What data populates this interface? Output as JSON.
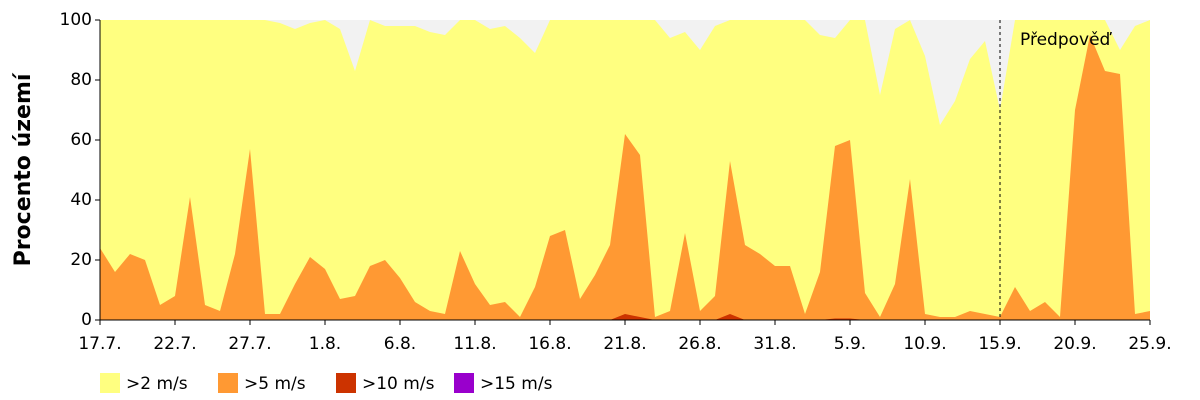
{
  "chart_data": {
    "type": "area",
    "ylabel": "Procento území",
    "categories": [
      "17.7.",
      null,
      null,
      null,
      null,
      "22.7.",
      null,
      null,
      null,
      null,
      "27.7.",
      null,
      null,
      null,
      null,
      "1.8.",
      null,
      null,
      null,
      null,
      "6.8.",
      null,
      null,
      null,
      null,
      "11.8.",
      null,
      null,
      null,
      null,
      "16.8.",
      null,
      null,
      null,
      null,
      "21.8.",
      null,
      null,
      null,
      null,
      "26.8.",
      null,
      null,
      null,
      null,
      "31.8.",
      null,
      null,
      null,
      null,
      "5.9.",
      null,
      null,
      null,
      null,
      "10.9.",
      null,
      null,
      null,
      null,
      "15.9.",
      null,
      null,
      null,
      null,
      "20.9.",
      null,
      null,
      null,
      null,
      "25.9."
    ],
    "series": [
      {
        "name": ">2 m/s",
        "color": "#ffff80",
        "values": [
          100,
          100,
          100,
          100,
          100,
          100,
          100,
          100,
          100,
          100,
          100,
          100,
          99,
          97,
          99,
          100,
          97,
          83,
          100,
          98,
          98,
          98,
          96,
          95,
          100,
          100,
          97,
          98,
          94,
          89,
          100,
          100,
          100,
          100,
          100,
          100,
          100,
          100,
          94,
          96,
          90,
          98,
          100,
          100,
          100,
          100,
          100,
          100,
          95,
          94,
          100,
          100,
          75,
          97,
          100,
          88,
          65,
          73,
          87,
          93,
          70,
          100,
          100,
          100,
          100,
          100,
          100,
          100,
          90,
          98,
          100
        ]
      },
      {
        "name": ">5 m/s",
        "color": "#ff9933",
        "values": [
          24,
          16,
          22,
          20,
          5,
          8,
          41,
          5,
          3,
          22,
          57,
          2,
          2,
          12,
          21,
          17,
          7,
          8,
          18,
          20,
          14,
          6,
          3,
          2,
          23,
          12,
          5,
          6,
          1,
          11,
          28,
          30,
          7,
          15,
          25,
          62,
          55,
          1,
          3,
          29,
          3,
          8,
          53,
          25,
          22,
          18,
          18,
          2,
          16,
          58,
          60,
          9,
          1,
          12,
          47,
          2,
          1,
          1,
          3,
          2,
          1,
          11,
          3,
          6,
          1,
          70,
          95,
          83,
          82,
          2,
          3
        ]
      },
      {
        "name": ">10 m/s",
        "color": "#cc3300",
        "values": [
          0,
          0,
          0,
          0,
          0,
          0,
          0,
          0,
          0,
          0,
          0,
          0,
          0,
          0,
          0,
          0,
          0,
          0,
          0,
          0,
          0,
          0,
          0,
          0,
          0,
          0,
          0,
          0,
          0,
          0,
          0,
          0,
          0,
          0,
          0,
          2,
          1,
          0,
          0,
          0,
          0,
          0,
          2,
          0,
          0,
          0,
          0,
          0,
          0,
          0.5,
          0.5,
          0,
          0,
          0,
          0,
          0,
          0,
          0,
          0,
          0,
          0,
          0,
          0,
          0,
          0,
          0,
          0,
          0,
          0,
          0,
          0
        ]
      },
      {
        "name": ">15 m/s",
        "color": "#9900cc",
        "values": [
          0,
          0,
          0,
          0,
          0,
          0,
          0,
          0,
          0,
          0,
          0,
          0,
          0,
          0,
          0,
          0,
          0,
          0,
          0,
          0,
          0,
          0,
          0,
          0,
          0,
          0,
          0,
          0,
          0,
          0,
          0,
          0,
          0,
          0,
          0,
          0,
          0,
          0,
          0,
          0,
          0,
          0,
          0,
          0,
          0,
          0,
          0,
          0,
          0,
          0,
          0,
          0,
          0,
          0,
          0,
          0,
          0,
          0,
          0,
          0,
          0,
          0,
          0,
          0,
          0,
          0,
          0,
          0,
          0,
          0,
          0
        ]
      }
    ],
    "ylim": [
      0,
      100
    ],
    "yticks": [
      0,
      20,
      40,
      60,
      80,
      100
    ],
    "forecast": {
      "label": "Předpověď",
      "at": "15.9."
    }
  }
}
